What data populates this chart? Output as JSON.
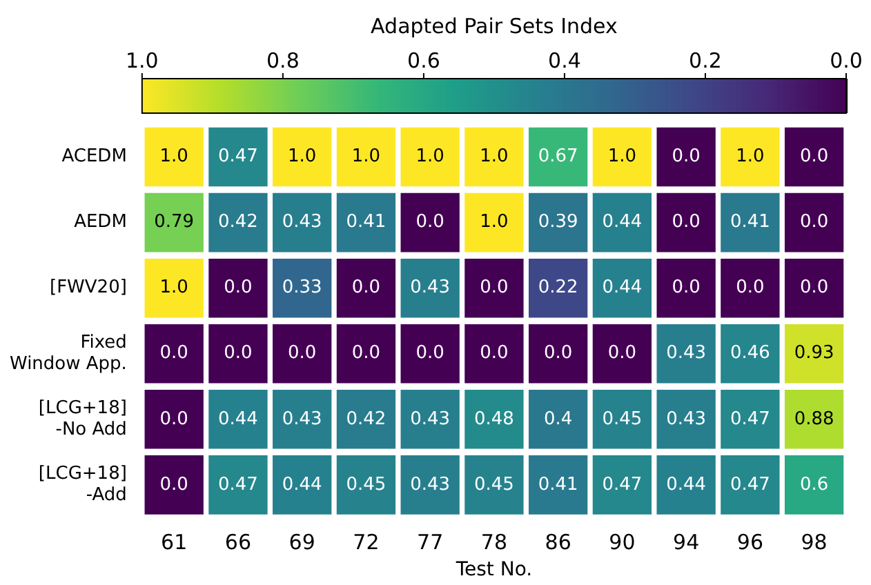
{
  "chart_data": {
    "type": "heatmap",
    "xlabel": "Test No.",
    "clabel": "Adapted Pair Sets Index",
    "categories": [
      "61",
      "66",
      "69",
      "72",
      "77",
      "78",
      "86",
      "90",
      "94",
      "96",
      "98"
    ],
    "y_categories": [
      "ACEDM",
      "AEDM",
      "[FWV20]",
      "Fixed\nWindow App.",
      "[LCG+18]\n-No Add",
      "[LCG+18]\n-Add"
    ],
    "cells": [
      [
        1.0,
        0.47,
        1.0,
        1.0,
        1.0,
        1.0,
        0.67,
        1.0,
        0.0,
        1.0,
        0.0
      ],
      [
        0.79,
        0.42,
        0.43,
        0.41,
        0.0,
        1.0,
        0.39,
        0.44,
        0.0,
        0.41,
        0.0
      ],
      [
        1.0,
        0.0,
        0.33,
        0.0,
        0.43,
        0.0,
        0.22,
        0.44,
        0.0,
        0.0,
        0.0
      ],
      [
        0.0,
        0.0,
        0.0,
        0.0,
        0.0,
        0.0,
        0.0,
        0.0,
        0.43,
        0.46,
        0.93
      ],
      [
        0.0,
        0.44,
        0.43,
        0.42,
        0.43,
        0.48,
        0.4,
        0.45,
        0.43,
        0.47,
        0.88
      ],
      [
        0.0,
        0.47,
        0.44,
        0.45,
        0.43,
        0.45,
        0.41,
        0.47,
        0.44,
        0.47,
        0.6
      ]
    ],
    "cell_labels": [
      [
        "1.0",
        "0.47",
        "1.0",
        "1.0",
        "1.0",
        "1.0",
        "0.67",
        "1.0",
        "0.0",
        "1.0",
        "0.0"
      ],
      [
        "0.79",
        "0.42",
        "0.43",
        "0.41",
        "0.0",
        "1.0",
        "0.39",
        "0.44",
        "0.0",
        "0.41",
        "0.0"
      ],
      [
        "1.0",
        "0.0",
        "0.33",
        "0.0",
        "0.43",
        "0.0",
        "0.22",
        "0.44",
        "0.0",
        "0.0",
        "0.0"
      ],
      [
        "0.0",
        "0.0",
        "0.0",
        "0.0",
        "0.0",
        "0.0",
        "0.0",
        "0.0",
        "0.43",
        "0.46",
        "0.93"
      ],
      [
        "0.0",
        "0.44",
        "0.43",
        "0.42",
        "0.43",
        "0.48",
        "0.4",
        "0.45",
        "0.43",
        "0.47",
        "0.88"
      ],
      [
        "0.0",
        "0.47",
        "0.44",
        "0.45",
        "0.43",
        "0.45",
        "0.41",
        "0.47",
        "0.44",
        "0.47",
        "0.6"
      ]
    ],
    "clim": [
      1.0,
      0.0
    ],
    "cticks": [
      {
        "value": 1,
        "label": "1.0"
      },
      {
        "value": 0.8,
        "label": "0.8"
      },
      {
        "value": 0.6,
        "label": "0.6"
      },
      {
        "value": 0.4,
        "label": "0.4"
      },
      {
        "value": 0.2,
        "label": "0.2"
      },
      {
        "value": 0,
        "label": "0.0"
      }
    ]
  }
}
